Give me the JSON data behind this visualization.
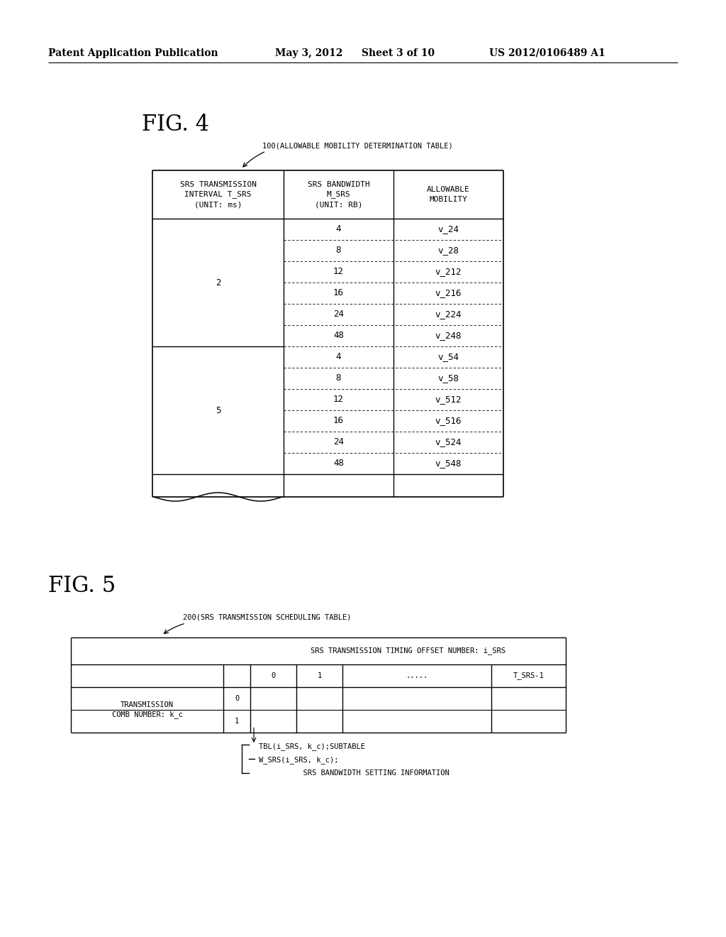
{
  "header_text": "Patent Application Publication",
  "date_text": "May 3, 2012",
  "sheet_text": "Sheet 3 of 10",
  "patent_text": "US 2012/0106489 A1",
  "fig4_label": "FIG. 4",
  "fig4_table_label": "100(ALLOWABLE MOBILITY DETERMINATION TABLE)",
  "fig4_col1_header": "SRS TRANSMISSION\nINTERVAL T_SRS\n(UNIT: ms)",
  "fig4_col2_header": "SRS BANDWIDTH\nM_SRS\n(UNIT: RB)",
  "fig4_col3_header": "ALLOWABLE\nMOBILITY",
  "fig4_rows": [
    [
      "",
      "4",
      "v_24"
    ],
    [
      "",
      "8",
      "v_28"
    ],
    [
      "",
      "12",
      "v_212"
    ],
    [
      "",
      "16",
      "v_216"
    ],
    [
      "",
      "24",
      "v_224"
    ],
    [
      "",
      "48",
      "v_248"
    ],
    [
      "",
      "4",
      "v_54"
    ],
    [
      "",
      "8",
      "v_58"
    ],
    [
      "",
      "12",
      "v_512"
    ],
    [
      "",
      "16",
      "v_516"
    ],
    [
      "",
      "24",
      "v_524"
    ],
    [
      "",
      "48",
      "v_548"
    ]
  ],
  "fig5_label": "FIG. 5",
  "fig5_table_label": "200(SRS TRANSMISSION SCHEDULING TABLE)",
  "fig5_col_header": "SRS TRANSMISSION TIMING OFFSET NUMBER: i_SRS",
  "fig5_sub_cols": [
    "0",
    "1",
    ".....",
    "T_SRS-1"
  ],
  "fig5_row_labels": [
    "0",
    "1"
  ],
  "bg_color": "#ffffff",
  "line_color": "#000000",
  "text_color": "#000000"
}
